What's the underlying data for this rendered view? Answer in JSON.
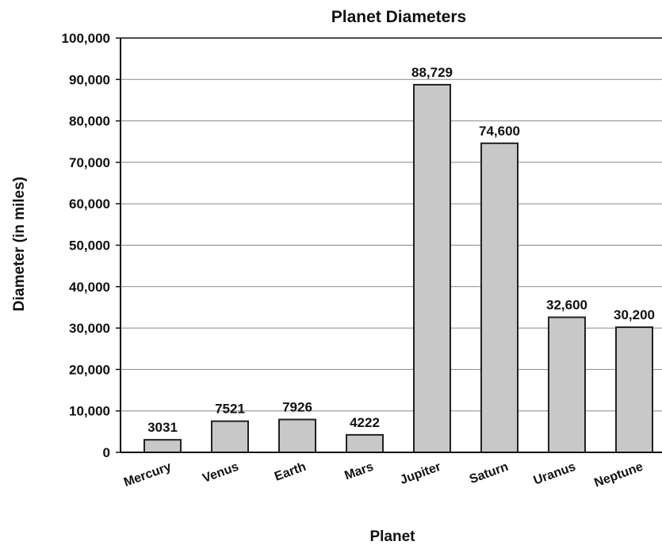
{
  "chart_data": {
    "type": "bar",
    "title": "Planet Diameters",
    "xlabel": "Planet",
    "ylabel": "Diameter (in miles)",
    "categories": [
      "Mercury",
      "Venus",
      "Earth",
      "Mars",
      "Jupiter",
      "Saturn",
      "Uranus",
      "Neptune"
    ],
    "values": [
      3031,
      7521,
      7926,
      4222,
      88729,
      74600,
      32600,
      30200
    ],
    "value_labels": [
      "3031",
      "7521",
      "7926",
      "4222",
      "88,729",
      "74,600",
      "32,600",
      "30,200"
    ],
    "ylim": [
      0,
      100000
    ],
    "yticks": [
      0,
      10000,
      20000,
      30000,
      40000,
      50000,
      60000,
      70000,
      80000,
      90000,
      100000
    ],
    "ytick_labels": [
      "0",
      "10,000",
      "20,000",
      "30,000",
      "40,000",
      "50,000",
      "60,000",
      "70,000",
      "80,000",
      "90,000",
      "100,000"
    ],
    "grid": true,
    "bar_color": "#c8c8c8",
    "bar_edge_color": "#222222",
    "grid_color": "#888888"
  }
}
